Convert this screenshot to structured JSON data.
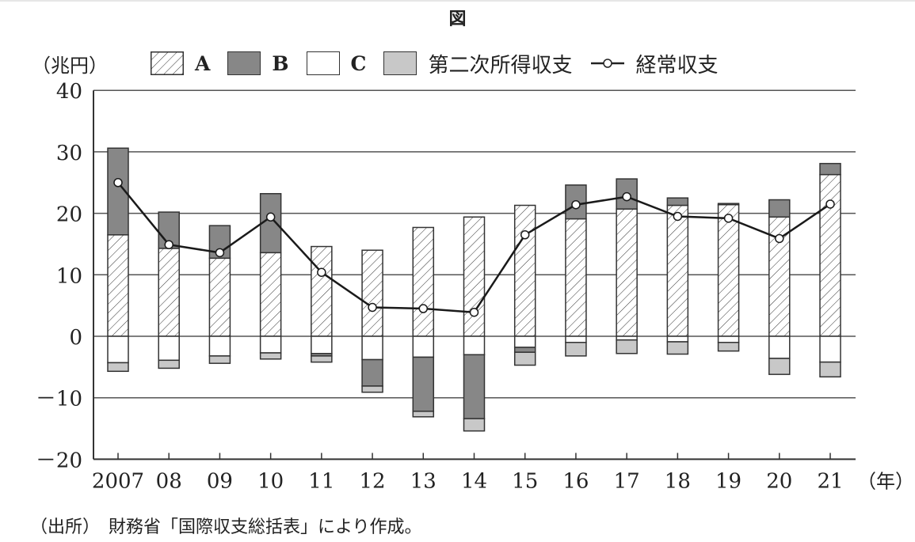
{
  "figure": {
    "title": "図",
    "unit_label": "（兆円）",
    "x_unit_label": "（年）",
    "source": "（出所）　財務省「国際収支総括表」により作成。"
  },
  "legend": [
    {
      "key": "A",
      "label": "A",
      "style": "hatched"
    },
    {
      "key": "B",
      "label": "B",
      "style": "dark",
      "color": "#878787"
    },
    {
      "key": "C",
      "label": "C",
      "style": "white",
      "color": "#ffffff"
    },
    {
      "key": "secondary",
      "label": "第二次所得収支",
      "style": "light",
      "color": "#c8c8c8"
    },
    {
      "key": "current",
      "label": "経常収支",
      "style": "line-marker"
    }
  ],
  "chart_data": {
    "type": "bar",
    "subtype": "stacked bar with line overlay",
    "title": "図",
    "xlabel": "（年）",
    "ylabel": "（兆円）",
    "ylim": [
      -20,
      40
    ],
    "yticks": [
      40,
      30,
      20,
      10,
      0,
      -10,
      -20
    ],
    "ytick_labels": [
      "40",
      "30",
      "20",
      "10",
      "0",
      "－10",
      "－20"
    ],
    "grid": "horizontal",
    "legend_position": "top",
    "categories": [
      "2007",
      "08",
      "09",
      "10",
      "11",
      "12",
      "13",
      "14",
      "15",
      "16",
      "17",
      "18",
      "19",
      "20",
      "21"
    ],
    "series": [
      {
        "name": "A",
        "kind": "bar",
        "values": [
          16.5,
          14.3,
          12.7,
          13.6,
          14.6,
          14.0,
          17.7,
          19.4,
          21.3,
          19.1,
          20.7,
          21.3,
          21.4,
          19.4,
          26.3
        ]
      },
      {
        "name": "B",
        "kind": "bar",
        "values": [
          14.1,
          5.9,
          5.3,
          9.6,
          -0.4,
          -4.3,
          -8.8,
          -10.4,
          -0.8,
          5.5,
          4.9,
          1.2,
          0.2,
          2.8,
          1.8
        ]
      },
      {
        "name": "C",
        "kind": "bar",
        "values": [
          -4.3,
          -3.9,
          -3.2,
          -2.7,
          -2.8,
          -3.8,
          -3.4,
          -3.0,
          -1.8,
          -1.0,
          -0.6,
          -0.9,
          -1.0,
          -3.6,
          -4.2
        ]
      },
      {
        "name": "第二次所得収支",
        "kind": "bar",
        "values": [
          -1.4,
          -1.3,
          -1.2,
          -1.0,
          -1.0,
          -1.0,
          -0.9,
          -2.0,
          -2.1,
          -2.2,
          -2.2,
          -2.0,
          -1.4,
          -2.6,
          -2.4
        ]
      },
      {
        "name": "経常収支",
        "kind": "line",
        "values": [
          25.0,
          14.9,
          13.6,
          19.4,
          10.4,
          4.7,
          4.5,
          3.9,
          16.5,
          21.4,
          22.7,
          19.5,
          19.2,
          15.9,
          21.5
        ]
      }
    ]
  }
}
